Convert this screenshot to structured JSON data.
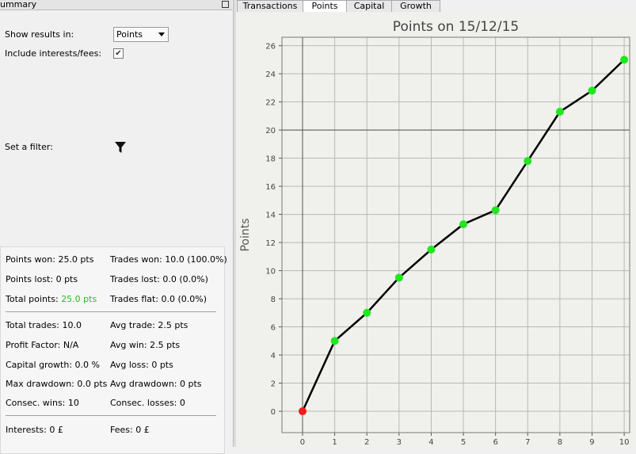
{
  "panel": {
    "title": "ummary",
    "show_results_label": "Show results in:",
    "show_results_value": "Points",
    "include_label": "Include interests/fees:",
    "include_checked": true,
    "filter_label": "Set a filter:"
  },
  "stats": {
    "points_won": "Points won: 25.0 pts",
    "trades_won": "Trades won: 10.0 (100.0%)",
    "points_lost": "Points lost: 0 pts",
    "trades_lost": "Trades lost: 0.0 (0.0%)",
    "total_points_label": "Total points:",
    "total_points_value": "25.0 pts",
    "trades_flat": "Trades flat: 0.0 (0.0%)",
    "total_trades": "Total trades: 10.0",
    "avg_trade": "Avg trade: 2.5 pts",
    "profit_factor": "Profit Factor: N/A",
    "avg_win": "Avg win: 2.5 pts",
    "capital_growth": "Capital growth: 0.0 %",
    "avg_loss": "Avg loss: 0 pts",
    "max_drawdown": "Max drawdown: 0.0 pts",
    "avg_drawdown": "Avg drawdown: 0 pts",
    "consec_wins": "Consec. wins: 10",
    "consec_losses": "Consec. losses: 0",
    "interests": "Interests: 0 £",
    "fees": "Fees: 0 £"
  },
  "tabs": [
    "Transactions",
    "Points",
    "Capital",
    "Growth"
  ],
  "active_tab": 1,
  "chart_data": {
    "type": "line",
    "title": "Points on 15/12/15",
    "y_label": "Points",
    "x": [
      0,
      1,
      2,
      3,
      4,
      5,
      6,
      7,
      8,
      9,
      10
    ],
    "values": [
      0,
      5.0,
      7.0,
      9.5,
      11.5,
      13.3,
      14.3,
      17.8,
      21.3,
      22.8,
      25.0
    ],
    "color": "#000000",
    "start_marker_color": "#ee1c1c",
    "marker_color": "#1ee81e",
    "xlim": [
      -0.64,
      10.17
    ],
    "ylim": [
      -1.52,
      26.6
    ],
    "xticks": [
      0,
      1,
      2,
      3,
      4,
      5,
      6,
      7,
      8,
      9,
      10
    ],
    "yticks": [
      0,
      2,
      4,
      6,
      8,
      10,
      12,
      14,
      16,
      18,
      20,
      22,
      24,
      26
    ],
    "grid": true,
    "hline": 20,
    "vline": 0
  }
}
